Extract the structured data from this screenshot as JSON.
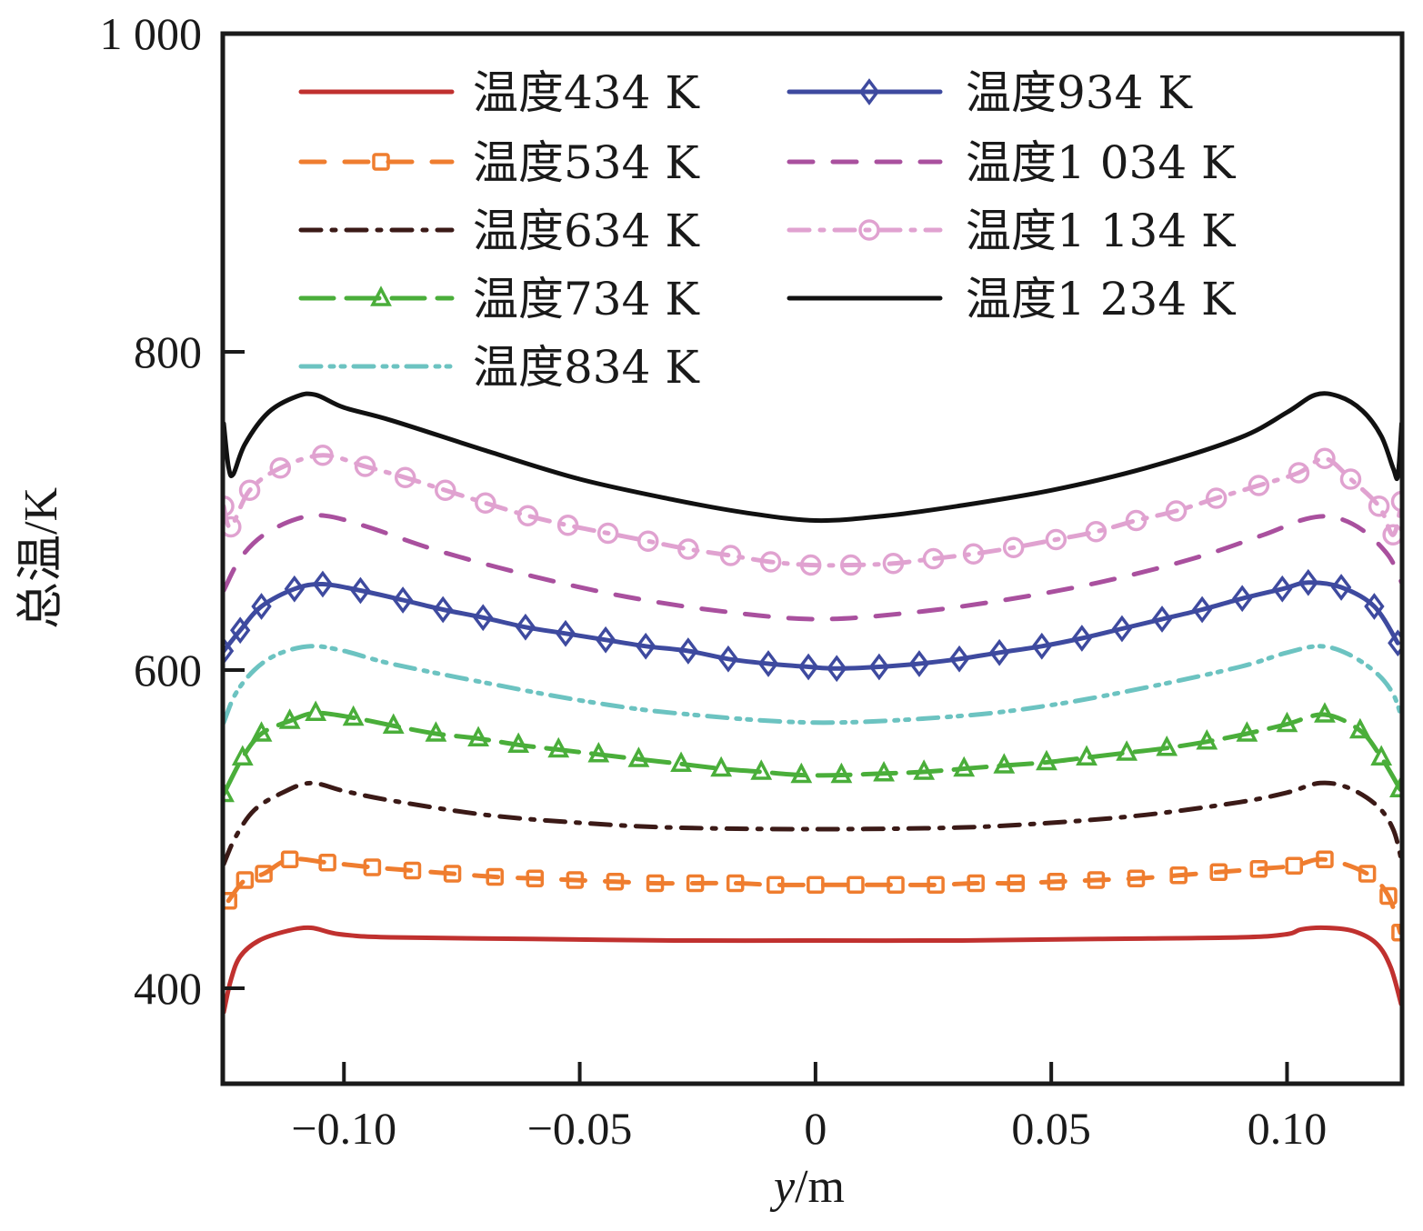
{
  "chart_data": {
    "type": "line",
    "title": "",
    "xlabel_italic": "y",
    "xlabel_unit": "/m",
    "xlabel": "y/m",
    "ylabel": "总温/K",
    "xlim": [
      -0.1257,
      0.1244
    ],
    "ylim": [
      340,
      1000
    ],
    "xticks": [
      -0.1,
      -0.05,
      0,
      0.05,
      0.1
    ],
    "xtick_labels": [
      "−0.10",
      "−0.05",
      "0",
      "0.05",
      "0.10"
    ],
    "yticks": [
      400,
      600,
      800,
      1000
    ],
    "ytick_labels": [
      "400",
      "600",
      "800",
      "1 000"
    ],
    "grid": false,
    "legend_position": "top",
    "legend_columns": 2,
    "series": [
      {
        "name": "温度434 K",
        "color": "#c0312f",
        "dash": "solid",
        "marker": "none",
        "x": [
          -0.1255,
          -0.124,
          -0.122,
          -0.118,
          -0.112,
          -0.107,
          -0.101,
          -0.09,
          -0.06,
          -0.03,
          0,
          0.03,
          0.06,
          0.09,
          0.1,
          0.103,
          0.108,
          0.114,
          0.119,
          0.122,
          0.1242
        ],
        "y": [
          385,
          405,
          420,
          430,
          436,
          438,
          434,
          432,
          431,
          430,
          430,
          430,
          431,
          432,
          434,
          437,
          438,
          436,
          428,
          413,
          390
        ]
      },
      {
        "name": "温度534 K",
        "color": "#ef7d2f",
        "dash": "dash",
        "marker": "square",
        "x": [
          -0.1245,
          -0.121,
          -0.117,
          -0.1115,
          -0.1035,
          -0.094,
          -0.0855,
          -0.077,
          -0.068,
          -0.0595,
          -0.051,
          -0.0425,
          -0.034,
          -0.0255,
          -0.017,
          -0.0085,
          0,
          0.0085,
          0.017,
          0.0255,
          0.034,
          0.0425,
          0.051,
          0.0595,
          0.068,
          0.077,
          0.0855,
          0.094,
          0.1015,
          0.108,
          0.117,
          0.1215,
          0.124
        ],
        "y": [
          455,
          468,
          472,
          481,
          479,
          476,
          474,
          472,
          470,
          469,
          468,
          467,
          466,
          466,
          466,
          465,
          465,
          465,
          465,
          465,
          466,
          466,
          467,
          468,
          469,
          471,
          473,
          475,
          477,
          481,
          472,
          458,
          435
        ]
      },
      {
        "name": "温度634 K",
        "color": "#3b1a17",
        "dash": "dashdot",
        "marker": "none",
        "x": [
          -0.1255,
          -0.123,
          -0.119,
          -0.113,
          -0.107,
          -0.1,
          -0.09,
          -0.07,
          -0.05,
          -0.03,
          0,
          0.03,
          0.05,
          0.07,
          0.09,
          0.1,
          0.107,
          0.113,
          0.119,
          0.1225,
          0.1243
        ],
        "y": [
          478,
          495,
          512,
          523,
          529,
          524,
          518,
          509,
          504,
          501,
          500,
          501,
          504,
          509,
          517,
          523,
          529,
          526,
          515,
          500,
          480
        ]
      },
      {
        "name": "温度734 K",
        "color": "#4aae3a",
        "dash": "longdash",
        "marker": "triangle",
        "x": [
          -0.1255,
          -0.1215,
          -0.1175,
          -0.1115,
          -0.106,
          -0.098,
          -0.0895,
          -0.0805,
          -0.0715,
          -0.063,
          -0.0545,
          -0.046,
          -0.0375,
          -0.0285,
          -0.02,
          -0.0115,
          -0.003,
          0.0055,
          0.0145,
          0.023,
          0.0315,
          0.04,
          0.049,
          0.0575,
          0.066,
          0.0745,
          0.083,
          0.0915,
          0.1,
          0.108,
          0.1155,
          0.12,
          0.124
        ],
        "y": [
          522,
          545,
          560,
          568,
          573,
          570,
          565,
          560,
          557,
          553,
          550,
          547,
          544,
          541,
          538,
          536,
          534,
          534,
          535,
          536,
          538,
          540,
          542,
          545,
          548,
          551,
          555,
          560,
          566,
          572,
          562,
          545,
          525
        ]
      },
      {
        "name": "温度834 K",
        "color": "#6cc3c1",
        "dash": "dashdotdot",
        "marker": "none",
        "x": [
          -0.1255,
          -0.123,
          -0.119,
          -0.114,
          -0.107,
          -0.1,
          -0.09,
          -0.07,
          -0.05,
          -0.03,
          0,
          0.03,
          0.05,
          0.07,
          0.09,
          0.1,
          0.107,
          0.113,
          0.119,
          0.1225,
          0.1243
        ],
        "y": [
          567,
          585,
          600,
          610,
          615,
          612,
          604,
          592,
          581,
          573,
          567,
          571,
          578,
          589,
          602,
          611,
          615,
          610,
          598,
          585,
          570
        ]
      },
      {
        "name": "温度934 K",
        "color": "#3e4a9f",
        "dash": "solid",
        "marker": "diamond",
        "x": [
          -0.1255,
          -0.122,
          -0.1175,
          -0.1105,
          -0.1045,
          -0.0965,
          -0.0875,
          -0.079,
          -0.0705,
          -0.0615,
          -0.053,
          -0.0445,
          -0.036,
          -0.027,
          -0.0185,
          -0.01,
          -0.0015,
          0.0045,
          0.0135,
          0.022,
          0.0305,
          0.039,
          0.048,
          0.0565,
          0.065,
          0.0735,
          0.082,
          0.0905,
          0.099,
          0.1045,
          0.1115,
          0.1185,
          0.1235
        ],
        "y": [
          612,
          625,
          640,
          651,
          654,
          650,
          644,
          638,
          633,
          627,
          623,
          619,
          615,
          612,
          607,
          604,
          602,
          601,
          602,
          604,
          607,
          611,
          615,
          620,
          626,
          632,
          638,
          645,
          651,
          655,
          652,
          640,
          617
        ]
      },
      {
        "name": "温度1 034 K",
        "color": "#a9509e",
        "dash": "dash",
        "marker": "none",
        "x": [
          -0.1255,
          -0.122,
          -0.117,
          -0.11,
          -0.104,
          -0.095,
          -0.08,
          -0.06,
          -0.04,
          -0.02,
          0,
          0.02,
          0.04,
          0.06,
          0.08,
          0.095,
          0.104,
          0.11,
          0.116,
          0.1215,
          0.1243
        ],
        "y": [
          650,
          670,
          685,
          695,
          697,
          690,
          675,
          659,
          646,
          637,
          632,
          636,
          644,
          655,
          670,
          685,
          695,
          696,
          688,
          672,
          655
        ]
      },
      {
        "name": "温度1 134 K",
        "color": "#e0a2d0",
        "dash": "dashdot",
        "marker": "circle",
        "x": [
          -0.1255,
          -0.124,
          -0.12,
          -0.1135,
          -0.1045,
          -0.0955,
          -0.087,
          -0.0785,
          -0.07,
          -0.061,
          -0.0525,
          -0.044,
          -0.0355,
          -0.027,
          -0.018,
          -0.0095,
          -0.001,
          0.0075,
          0.0165,
          0.025,
          0.0335,
          0.042,
          0.051,
          0.0595,
          0.068,
          0.0765,
          0.085,
          0.094,
          0.1025,
          0.108,
          0.1135,
          0.1195,
          0.1225,
          0.1243
        ],
        "y": [
          703,
          690,
          713,
          727,
          735,
          728,
          721,
          713,
          705,
          697,
          691,
          686,
          681,
          676,
          672,
          668,
          666,
          666,
          667,
          670,
          673,
          677,
          682,
          687,
          694,
          700,
          708,
          716,
          724,
          733,
          720,
          703,
          685,
          706
        ]
      },
      {
        "name": "温度1 234 K",
        "color": "#111111",
        "dash": "solid",
        "marker": "none",
        "x": [
          -0.1255,
          -0.1245,
          -0.1235,
          -0.121,
          -0.116,
          -0.11,
          -0.106,
          -0.1,
          -0.09,
          -0.07,
          -0.05,
          -0.03,
          -0.015,
          0,
          0.015,
          0.03,
          0.05,
          0.07,
          0.09,
          0.1,
          0.106,
          0.111,
          0.116,
          0.12,
          0.1225,
          0.1235,
          0.1243
        ],
        "y": [
          755,
          728,
          723,
          742,
          762,
          772,
          773,
          765,
          757,
          738,
          720,
          707,
          699,
          694,
          697,
          703,
          713,
          727,
          746,
          762,
          773,
          772,
          763,
          747,
          727,
          722,
          755
        ]
      }
    ]
  }
}
